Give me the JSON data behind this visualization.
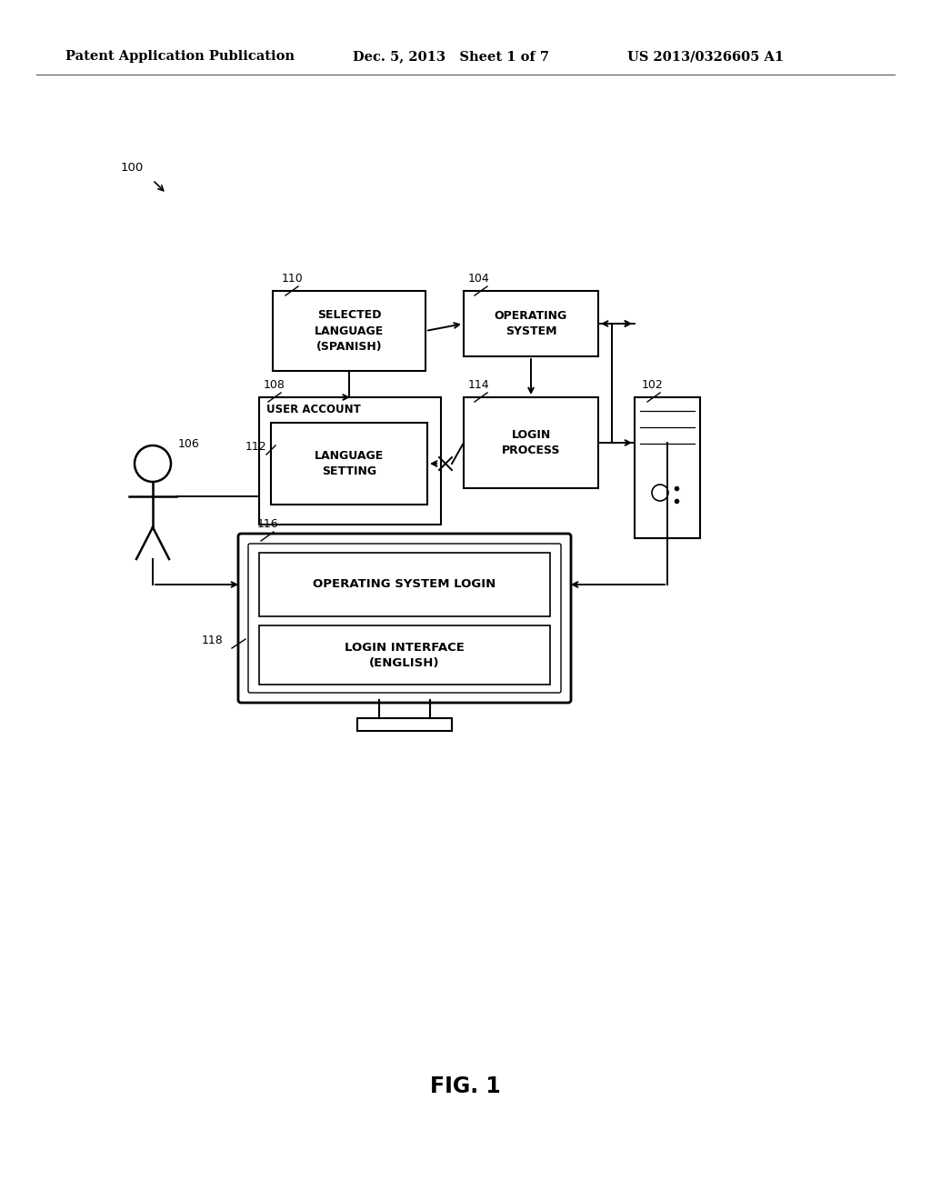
{
  "header_left": "Patent Application Publication",
  "header_mid": "Dec. 5, 2013   Sheet 1 of 7",
  "header_right": "US 2013/0326605 A1",
  "fig_label": "FIG. 1",
  "label_100": "100",
  "label_102": "102",
  "label_104": "104",
  "label_106": "106",
  "label_108": "108",
  "label_110": "110",
  "label_112": "112",
  "label_114": "114",
  "label_116": "116",
  "label_118": "118",
  "box_selected_language": "SELECTED\nLANGUAGE\n(SPANISH)",
  "box_operating_system": "OPERATING\nSYSTEM",
  "box_user_account": "USER ACCOUNT",
  "box_language_setting": "LANGUAGE\nSETTING",
  "box_login_process": "LOGIN\nPROCESS",
  "box_os_login": "OPERATING SYSTEM LOGIN",
  "box_login_interface": "LOGIN INTERFACE\n(ENGLISH)",
  "bg_color": "#ffffff",
  "box_edge_color": "#000000",
  "text_color": "#000000"
}
